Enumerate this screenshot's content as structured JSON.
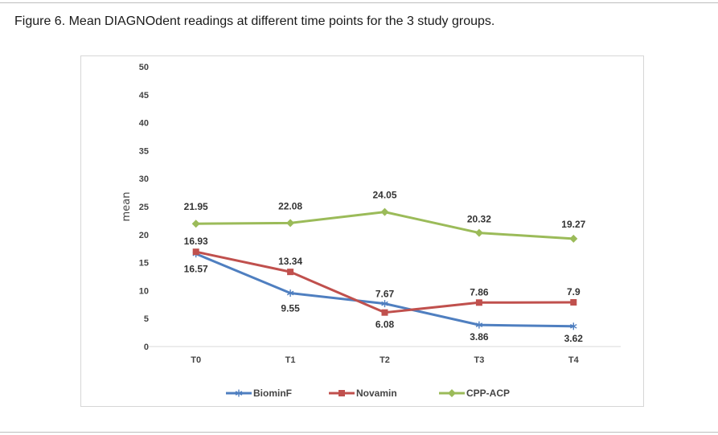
{
  "figure": {
    "caption": "Figure 6. Mean DIAGNOdent readings at different time points for the 3 study groups."
  },
  "chart_data": {
    "type": "line",
    "title": "",
    "xlabel": "",
    "ylabel": "mean",
    "categories": [
      "T0",
      "T1",
      "T2",
      "T3",
      "T4"
    ],
    "ylim": [
      0,
      50
    ],
    "yticks": [
      0,
      5,
      10,
      15,
      20,
      25,
      30,
      35,
      40,
      45,
      50
    ],
    "grid": false,
    "legend_position": "bottom",
    "series": [
      {
        "name": "BiominF",
        "color": "#4f7fc0",
        "marker": "asterisk",
        "values": [
          16.57,
          9.55,
          7.67,
          3.86,
          3.62
        ],
        "labels": [
          "16.57",
          "9.55",
          "7.67",
          "3.86",
          "3.62"
        ]
      },
      {
        "name": "Novamin",
        "color": "#c0504d",
        "marker": "square",
        "values": [
          16.93,
          13.34,
          6.08,
          7.86,
          7.9
        ],
        "labels": [
          "16.93",
          "13.34",
          "6.08",
          "7.86",
          "7.9"
        ]
      },
      {
        "name": "CPP-ACP",
        "color": "#9bbb59",
        "marker": "diamond",
        "values": [
          21.95,
          22.08,
          24.05,
          20.32,
          19.27
        ],
        "labels": [
          "21.95",
          "22.08",
          "24.05",
          "20.32",
          "19.27"
        ]
      }
    ]
  }
}
